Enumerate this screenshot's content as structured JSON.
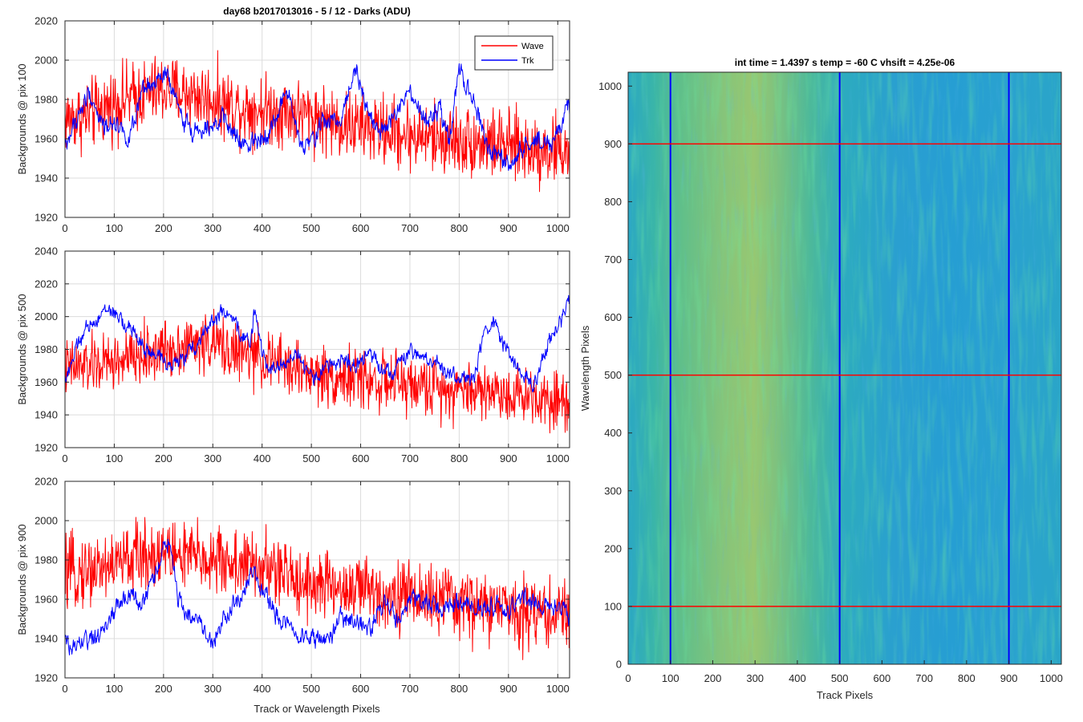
{
  "figure_title": "day68 b2017013016 - 5 / 12 - Darks (ADU)",
  "colors": {
    "wave": "#ff0000",
    "trk": "#0000ff",
    "grid": "#dcdcdc",
    "axis": "#262626"
  },
  "chart_data": [
    {
      "type": "line",
      "title": "day68 b2017013016 - 5 / 12 - Darks (ADU)",
      "xlabel": "",
      "ylabel": "Backgrounds @ pix 100",
      "xlim": [
        0,
        1024
      ],
      "ylim": [
        1920,
        2020
      ],
      "xticks": [
        0,
        100,
        200,
        300,
        400,
        500,
        600,
        700,
        800,
        900,
        1000
      ],
      "yticks": [
        1920,
        1940,
        1960,
        1980,
        2000,
        2020
      ],
      "grid": true,
      "legend": "top-right",
      "series": [
        {
          "name": "Wave",
          "color": "#ff0000",
          "noise": 11,
          "x": [
            0,
            50,
            100,
            150,
            200,
            250,
            300,
            350,
            400,
            450,
            500,
            550,
            600,
            650,
            700,
            750,
            800,
            850,
            900,
            950,
            1000,
            1024
          ],
          "y": [
            1970,
            1972,
            1978,
            1982,
            1985,
            1983,
            1980,
            1976,
            1975,
            1974,
            1972,
            1968,
            1966,
            1964,
            1962,
            1960,
            1959,
            1958,
            1956,
            1955,
            1954,
            1953
          ]
        },
        {
          "name": "Trk",
          "color": "#0000ff",
          "noise": 4,
          "x": [
            0,
            20,
            50,
            80,
            100,
            130,
            160,
            185,
            205,
            230,
            260,
            290,
            320,
            360,
            390,
            420,
            450,
            480,
            500,
            520,
            560,
            590,
            610,
            640,
            670,
            700,
            730,
            760,
            780,
            800,
            830,
            860,
            900,
            930,
            960,
            990,
            1010,
            1024
          ],
          "y": [
            1955,
            1968,
            1983,
            1965,
            1970,
            1960,
            1984,
            1988,
            1993,
            1975,
            1963,
            1968,
            1970,
            1956,
            1960,
            1965,
            1985,
            1955,
            1958,
            1968,
            1970,
            1998,
            1978,
            1962,
            1972,
            1983,
            1968,
            1975,
            1958,
            1995,
            1978,
            1955,
            1945,
            1955,
            1960,
            1958,
            1970,
            1976
          ]
        }
      ]
    },
    {
      "type": "line",
      "title": "",
      "xlabel": "",
      "ylabel": "Backgrounds @ pix 500",
      "xlim": [
        0,
        1024
      ],
      "ylim": [
        1920,
        2040
      ],
      "xticks": [
        0,
        100,
        200,
        300,
        400,
        500,
        600,
        700,
        800,
        900,
        1000
      ],
      "yticks": [
        1920,
        1940,
        1960,
        1980,
        2000,
        2020,
        2040
      ],
      "grid": true,
      "series": [
        {
          "name": "Wave",
          "color": "#ff0000",
          "noise": 11,
          "x": [
            0,
            50,
            100,
            150,
            200,
            250,
            300,
            350,
            400,
            450,
            500,
            550,
            600,
            650,
            700,
            750,
            800,
            850,
            900,
            950,
            1000,
            1024
          ],
          "y": [
            1968,
            1970,
            1972,
            1975,
            1980,
            1983,
            1984,
            1978,
            1974,
            1970,
            1965,
            1963,
            1962,
            1960,
            1958,
            1957,
            1956,
            1955,
            1953,
            1952,
            1950,
            1948
          ]
        },
        {
          "name": "Trk",
          "color": "#0000ff",
          "noise": 4,
          "x": [
            0,
            30,
            60,
            90,
            110,
            140,
            170,
            200,
            230,
            260,
            290,
            320,
            350,
            375,
            385,
            400,
            430,
            470,
            500,
            530,
            560,
            590,
            620,
            660,
            700,
            740,
            770,
            800,
            830,
            850,
            870,
            890,
            920,
            950,
            980,
            1000,
            1024
          ],
          "y": [
            1962,
            1985,
            1998,
            2005,
            1998,
            1990,
            1978,
            1973,
            1972,
            1980,
            1995,
            2003,
            1993,
            1983,
            2005,
            1975,
            1968,
            1978,
            1962,
            1968,
            1975,
            1968,
            1978,
            1965,
            1978,
            1973,
            1968,
            1962,
            1962,
            1988,
            1998,
            1982,
            1968,
            1958,
            1983,
            1995,
            2008
          ]
        }
      ]
    },
    {
      "type": "line",
      "title": "",
      "xlabel": "Track or Wavelength Pixels",
      "ylabel": "Backgrounds @ pix 900",
      "xlim": [
        0,
        1024
      ],
      "ylim": [
        1920,
        2020
      ],
      "xticks": [
        0,
        100,
        200,
        300,
        400,
        500,
        600,
        700,
        800,
        900,
        1000
      ],
      "yticks": [
        1920,
        1940,
        1960,
        1980,
        2000,
        2020
      ],
      "grid": true,
      "series": [
        {
          "name": "Wave",
          "color": "#ff0000",
          "noise": 11,
          "x": [
            0,
            50,
            100,
            150,
            200,
            250,
            300,
            350,
            400,
            450,
            500,
            550,
            600,
            650,
            700,
            750,
            800,
            850,
            900,
            950,
            1000,
            1024
          ],
          "y": [
            1972,
            1975,
            1978,
            1982,
            1984,
            1982,
            1980,
            1978,
            1976,
            1972,
            1968,
            1966,
            1965,
            1963,
            1962,
            1960,
            1958,
            1956,
            1955,
            1954,
            1952,
            1953
          ]
        },
        {
          "name": "Trk",
          "color": "#0000ff",
          "noise": 4,
          "x": [
            0,
            20,
            40,
            60,
            80,
            100,
            130,
            160,
            190,
            210,
            230,
            260,
            280,
            300,
            320,
            350,
            380,
            400,
            430,
            460,
            500,
            530,
            560,
            590,
            620,
            650,
            680,
            700,
            730,
            760,
            790,
            820,
            850,
            870,
            900,
            930,
            960,
            990,
            1010,
            1024
          ],
          "y": [
            1938,
            1935,
            1940,
            1938,
            1945,
            1955,
            1962,
            1958,
            1978,
            1990,
            1960,
            1950,
            1945,
            1938,
            1950,
            1958,
            1975,
            1965,
            1952,
            1945,
            1940,
            1938,
            1950,
            1948,
            1945,
            1960,
            1948,
            1960,
            1958,
            1955,
            1958,
            1955,
            1955,
            1958,
            1952,
            1962,
            1958,
            1955,
            1958,
            1950
          ]
        }
      ]
    },
    {
      "type": "heatmap",
      "title": "int time = 1.4397 s    temp = -60 C    vhsift = 4.25e-06",
      "xlabel": "Track Pixels",
      "ylabel": "Wavelength Pixels",
      "xlim": [
        0,
        1024
      ],
      "ylim": [
        0,
        1024
      ],
      "xticks": [
        0,
        100,
        200,
        300,
        400,
        500,
        600,
        700,
        800,
        900,
        1000
      ],
      "yticks": [
        0,
        100,
        200,
        300,
        400,
        500,
        600,
        700,
        800,
        900,
        1000
      ],
      "colormap": "parula",
      "vertical_marker_lines": {
        "color": "#0000ff",
        "x": [
          100,
          500,
          900
        ]
      },
      "horizontal_marker_lines": {
        "color": "#ff0000",
        "y": [
          100,
          500,
          900
        ]
      }
    }
  ]
}
